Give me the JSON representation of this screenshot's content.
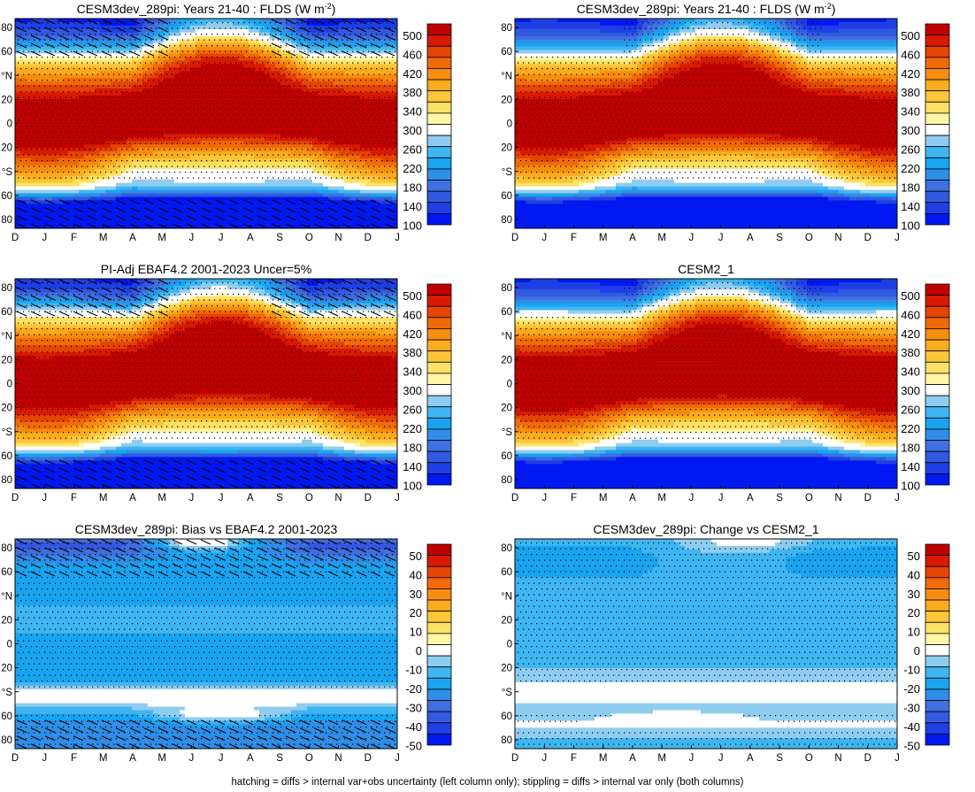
{
  "caption": "hatching = diffs > internal var+obs uncertainty (left column only); stippling = diffs > internal var only (both columns)",
  "chart_data": [
    {
      "type": "heatmap",
      "title": "CESM3dev_289pi: Years 21-40 : FLDS (W m",
      "title_sup": "-2",
      "title_tail": ")",
      "months": [
        "D",
        "J",
        "F",
        "M",
        "A",
        "M",
        "J",
        "J",
        "A",
        "S",
        "O",
        "N",
        "D",
        "J"
      ],
      "lat_ticks": [
        "80",
        "60",
        "°N",
        "20",
        "0",
        "20",
        "°S",
        "60",
        "80"
      ],
      "colorbar_labels": [
        "500",
        "460",
        "420",
        "380",
        "340",
        "300",
        "260",
        "220",
        "180",
        "140",
        "100"
      ],
      "field": "flds_model",
      "hatched": true,
      "stippled": true
    },
    {
      "type": "heatmap",
      "title": "CESM3dev_289pi: Years 21-40 : FLDS (W m",
      "title_sup": "-2",
      "title_tail": ")",
      "months": [
        "D",
        "J",
        "F",
        "M",
        "A",
        "M",
        "J",
        "J",
        "A",
        "S",
        "O",
        "N",
        "D",
        "J"
      ],
      "lat_ticks": [
        "80",
        "60",
        "°N",
        "20",
        "0",
        "20",
        "°S",
        "60",
        "80"
      ],
      "colorbar_labels": [
        "500",
        "460",
        "420",
        "380",
        "340",
        "300",
        "260",
        "220",
        "180",
        "140",
        "100"
      ],
      "field": "flds_model",
      "hatched": false,
      "stippled": true
    },
    {
      "type": "heatmap",
      "title": "PI-Adj EBAF4.2 2001-2023 Uncer=5%",
      "months": [
        "D",
        "J",
        "F",
        "M",
        "A",
        "M",
        "J",
        "J",
        "A",
        "S",
        "O",
        "N",
        "D",
        "J"
      ],
      "lat_ticks": [
        "80",
        "60",
        "°N",
        "20",
        "0",
        "20",
        "°S",
        "60",
        "80"
      ],
      "colorbar_labels": [
        "500",
        "460",
        "420",
        "380",
        "340",
        "300",
        "260",
        "220",
        "180",
        "140",
        "100"
      ],
      "field": "flds_obs",
      "hatched": true,
      "stippled": true
    },
    {
      "type": "heatmap",
      "title": "CESM2_1",
      "months": [
        "D",
        "J",
        "F",
        "M",
        "A",
        "M",
        "J",
        "J",
        "A",
        "S",
        "O",
        "N",
        "D",
        "J"
      ],
      "lat_ticks": [
        "80",
        "60",
        "°N",
        "20",
        "0",
        "20",
        "°S",
        "60",
        "80"
      ],
      "colorbar_labels": [
        "500",
        "460",
        "420",
        "380",
        "340",
        "300",
        "260",
        "220",
        "180",
        "140",
        "100"
      ],
      "field": "flds_cesm2",
      "hatched": false,
      "stippled": true
    },
    {
      "type": "heatmap",
      "title": "CESM3dev_289pi: Bias vs EBAF4.2 2001-2023",
      "months": [
        "D",
        "J",
        "F",
        "M",
        "A",
        "M",
        "J",
        "J",
        "A",
        "S",
        "O",
        "N",
        "D",
        "J"
      ],
      "lat_ticks": [
        "80",
        "60",
        "°N",
        "20",
        "0",
        "20",
        "°S",
        "60",
        "80"
      ],
      "colorbar_labels": [
        "50",
        "40",
        "30",
        "20",
        "10",
        "0",
        "-10",
        "-20",
        "-30",
        "-40",
        "-50"
      ],
      "field": "bias",
      "hatched": true,
      "stippled": true
    },
    {
      "type": "heatmap",
      "title": "CESM3dev_289pi: Change vs CESM2_1",
      "months": [
        "D",
        "J",
        "F",
        "M",
        "A",
        "M",
        "J",
        "J",
        "A",
        "S",
        "O",
        "N",
        "D",
        "J"
      ],
      "lat_ticks": [
        "80",
        "60",
        "°N",
        "20",
        "0",
        "20",
        "°S",
        "60",
        "80"
      ],
      "colorbar_labels": [
        "50",
        "40",
        "30",
        "20",
        "10",
        "0",
        "-10",
        "-20",
        "-30",
        "-40",
        "-50"
      ],
      "field": "change",
      "hatched": false,
      "stippled": true
    }
  ],
  "palette": [
    "#0019f0",
    "#1f3fe6",
    "#3259df",
    "#3f6fe0",
    "#2f8ee8",
    "#18a4f0",
    "#3fb6f2",
    "#8fcdf0",
    "#ffffff",
    "#fff6a6",
    "#fde166",
    "#fcc63a",
    "#fbab1e",
    "#f78d0e",
    "#f06a08",
    "#e54405",
    "#d81a03",
    "#c00000"
  ],
  "plot_bg": "#ffffff"
}
